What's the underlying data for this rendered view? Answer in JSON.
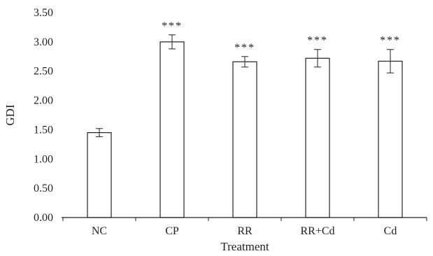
{
  "chart_data": {
    "type": "bar",
    "title": "",
    "xlabel": "Treatment",
    "ylabel": "GDI",
    "categories": [
      "NC",
      "CP",
      "RR",
      "RR+Cd",
      "Cd"
    ],
    "values": [
      1.45,
      3.0,
      2.66,
      2.72,
      2.67
    ],
    "errors": [
      0.07,
      0.12,
      0.09,
      0.15,
      0.2
    ],
    "significance": [
      "",
      "***",
      "***",
      "***",
      "***"
    ],
    "ylim": [
      0,
      3.5
    ],
    "yticks": [
      "0.00",
      "0.50",
      "1.00",
      "1.50",
      "2.00",
      "2.50",
      "3.00",
      "3.50"
    ],
    "grid": false,
    "legend": "none",
    "bar_fill": "#ffffff",
    "bar_stroke": "#222222"
  }
}
